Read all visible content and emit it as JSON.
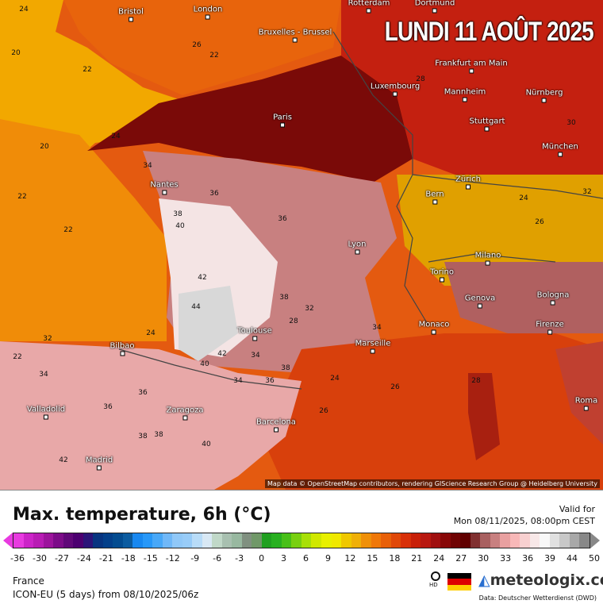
{
  "map": {
    "title": "LUNDI 11 AOÛT 2025",
    "attribution": "Map data © OpenStreetMap contributors, rendering GIScience Research Group @ Heidelberg University",
    "cities": [
      {
        "name": "Bristol"
      },
      {
        "name": "London"
      },
      {
        "name": "Rotterdam"
      },
      {
        "name": "Dortmund"
      },
      {
        "name": "Bruxelles - Brussel"
      },
      {
        "name": "Frankfurt am Main"
      },
      {
        "name": "Luxembourg"
      },
      {
        "name": "Mannheim"
      },
      {
        "name": "Nürnberg"
      },
      {
        "name": "Paris"
      },
      {
        "name": "Stuttgart"
      },
      {
        "name": "München"
      },
      {
        "name": "Nantes"
      },
      {
        "name": "Zürich"
      },
      {
        "name": "Bern"
      },
      {
        "name": "Lyon"
      },
      {
        "name": "Milano"
      },
      {
        "name": "Torino"
      },
      {
        "name": "Genova"
      },
      {
        "name": "Bologna"
      },
      {
        "name": "Monaco"
      },
      {
        "name": "Firenze"
      },
      {
        "name": "Toulouse"
      },
      {
        "name": "Marseille"
      },
      {
        "name": "Bilbao"
      },
      {
        "name": "Valladolid"
      },
      {
        "name": "Zaragoza"
      },
      {
        "name": "Barcelona"
      },
      {
        "name": "Roma"
      },
      {
        "name": "Madrid"
      }
    ],
    "contour_labels": [
      "20",
      "22",
      "24",
      "22",
      "22",
      "20",
      "22",
      "24",
      "34",
      "36",
      "38",
      "40",
      "42",
      "44",
      "36",
      "38",
      "34",
      "32",
      "42",
      "40",
      "38",
      "36",
      "34",
      "24",
      "26",
      "26",
      "28",
      "30",
      "32",
      "24",
      "26",
      "28",
      "34",
      "36",
      "38",
      "40",
      "42",
      "36",
      "38",
      "32",
      "34",
      "22",
      "24",
      "26",
      "28"
    ]
  },
  "legend": {
    "title": "Max. temperature, 6h (°C)",
    "valid_label": "Valid for",
    "valid_time": "Mon 08/11/2025, 08:00pm CEST",
    "ticks": [
      "-36",
      "-30",
      "-27",
      "-24",
      "-21",
      "-18",
      "-15",
      "-12",
      "-9",
      "-6",
      "-3",
      "0",
      "3",
      "6",
      "9",
      "12",
      "15",
      "18",
      "21",
      "24",
      "27",
      "30",
      "33",
      "36",
      "39",
      "44",
      "50"
    ],
    "colors": [
      "#e83ae0",
      "#cc24c8",
      "#b81cb4",
      "#9c149c",
      "#7c0c88",
      "#600878",
      "#4c0070",
      "#2c1478",
      "#083480",
      "#04408a",
      "#044c90",
      "#0c5ca0",
      "#1888f0",
      "#2898f8",
      "#48a8f8",
      "#70b8f8",
      "#90c8f8",
      "#98ccf8",
      "#b8dcf8",
      "#d8e8f4",
      "#c0d8c8",
      "#a8c0b0",
      "#98b8a0",
      "#809080",
      "#709868",
      "#20a020",
      "#28b020",
      "#48c018",
      "#78d010",
      "#a8e008",
      "#d0e800",
      "#e8f000",
      "#f0e800",
      "#f0c800",
      "#f0b008",
      "#f09008",
      "#f07808",
      "#e86008",
      "#e04808",
      "#d83008",
      "#c82008",
      "#b81810",
      "#a01010",
      "#880808",
      "#700404",
      "#600000",
      "#803030",
      "#a86060",
      "#c88080",
      "#e8a0a0",
      "#f8b8b8",
      "#f8d0d0",
      "#f8e8e8",
      "#f8f8f8",
      "#e0e0e0",
      "#c8c8c8",
      "#a8a8a8",
      "#888888"
    ],
    "region": "France",
    "model": "ICON-EU (5 days) from  08/10/2025/06z",
    "brand": "meteologix.com",
    "hd_label": "HD",
    "data_source": "Data: Deutscher Wetterdienst  (DWD)"
  }
}
